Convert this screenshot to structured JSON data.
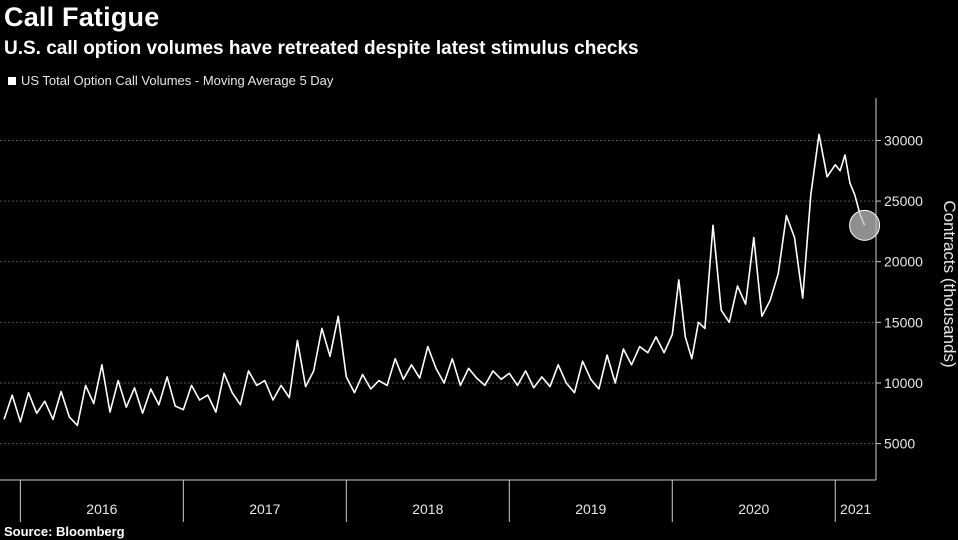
{
  "header": {
    "title": "Call Fatigue",
    "subtitle": "U.S. call option volumes have retreated despite latest stimulus checks"
  },
  "legend": {
    "label": "US Total Option Call Volumes - Moving Average 5 Day"
  },
  "footer": {
    "source": "Source: Bloomberg"
  },
  "colors": {
    "background": "#000000",
    "line": "#ffffff",
    "grid": "#555555",
    "highlight": "#bfbfbf"
  },
  "chart_data": {
    "type": "line",
    "title": "Call Fatigue",
    "subtitle": "U.S. call option volumes have retreated despite latest stimulus checks",
    "ylabel": "Contracts (thousands)",
    "xlabel": "",
    "ylim": [
      2000,
      33500
    ],
    "xlim": [
      2015.875,
      2021.25
    ],
    "yticks": [
      5000,
      10000,
      15000,
      20000,
      25000,
      30000
    ],
    "x_tick_labels": [
      "2016",
      "2017",
      "2018",
      "2019",
      "2020",
      "2021"
    ],
    "grid": true,
    "legend_position": "top-left",
    "annotation": "circle marking latest value",
    "series": [
      {
        "name": "US Total Option Call Volumes - Moving Average 5 Day",
        "x": [
          2015.9,
          2015.95,
          2016.0,
          2016.05,
          2016.1,
          2016.15,
          2016.2,
          2016.25,
          2016.3,
          2016.35,
          2016.4,
          2016.45,
          2016.5,
          2016.55,
          2016.6,
          2016.65,
          2016.7,
          2016.75,
          2016.8,
          2016.85,
          2016.9,
          2016.95,
          2017.0,
          2017.05,
          2017.1,
          2017.15,
          2017.2,
          2017.25,
          2017.3,
          2017.35,
          2017.4,
          2017.45,
          2017.5,
          2017.55,
          2017.6,
          2017.65,
          2017.7,
          2017.75,
          2017.8,
          2017.85,
          2017.9,
          2017.95,
          2018.0,
          2018.05,
          2018.1,
          2018.15,
          2018.2,
          2018.25,
          2018.3,
          2018.35,
          2018.4,
          2018.45,
          2018.5,
          2018.55,
          2018.6,
          2018.65,
          2018.7,
          2018.75,
          2018.8,
          2018.85,
          2018.9,
          2018.95,
          2019.0,
          2019.05,
          2019.1,
          2019.15,
          2019.2,
          2019.25,
          2019.3,
          2019.35,
          2019.4,
          2019.45,
          2019.5,
          2019.55,
          2019.6,
          2019.65,
          2019.7,
          2019.75,
          2019.8,
          2019.85,
          2019.9,
          2019.95,
          2020.0,
          2020.04,
          2020.08,
          2020.12,
          2020.16,
          2020.2,
          2020.25,
          2020.3,
          2020.35,
          2020.4,
          2020.45,
          2020.5,
          2020.55,
          2020.6,
          2020.65,
          2020.7,
          2020.75,
          2020.8,
          2020.85,
          2020.9,
          2020.95,
          2021.0,
          2021.03,
          2021.06,
          2021.09,
          2021.12,
          2021.15,
          2021.18
        ],
        "values": [
          7000,
          9000,
          6800,
          9200,
          7500,
          8500,
          7000,
          9300,
          7200,
          6500,
          9800,
          8300,
          11500,
          7600,
          10200,
          8000,
          9600,
          7500,
          9500,
          8200,
          10500,
          8100,
          7800,
          9800,
          8600,
          9000,
          7600,
          10800,
          9200,
          8200,
          11000,
          9800,
          10200,
          8600,
          9800,
          8800,
          13500,
          9700,
          11000,
          14500,
          12200,
          15500,
          10500,
          9200,
          10700,
          9500,
          10200,
          9800,
          12000,
          10300,
          11500,
          10400,
          13000,
          11200,
          10000,
          12000,
          9800,
          11200,
          10400,
          9800,
          11000,
          10300,
          10800,
          9800,
          11000,
          9600,
          10500,
          9700,
          11500,
          10000,
          9200,
          11800,
          10300,
          9500,
          12300,
          10000,
          12800,
          11500,
          13000,
          12500,
          13800,
          12500,
          14000,
          18500,
          13800,
          12000,
          15000,
          14500,
          23000,
          16000,
          15000,
          18000,
          16500,
          22000,
          15500,
          16800,
          19000,
          23800,
          22000,
          17000,
          25500,
          30500,
          27000,
          28000,
          27500,
          28800,
          26500,
          25500,
          24000,
          23000
        ]
      }
    ]
  }
}
